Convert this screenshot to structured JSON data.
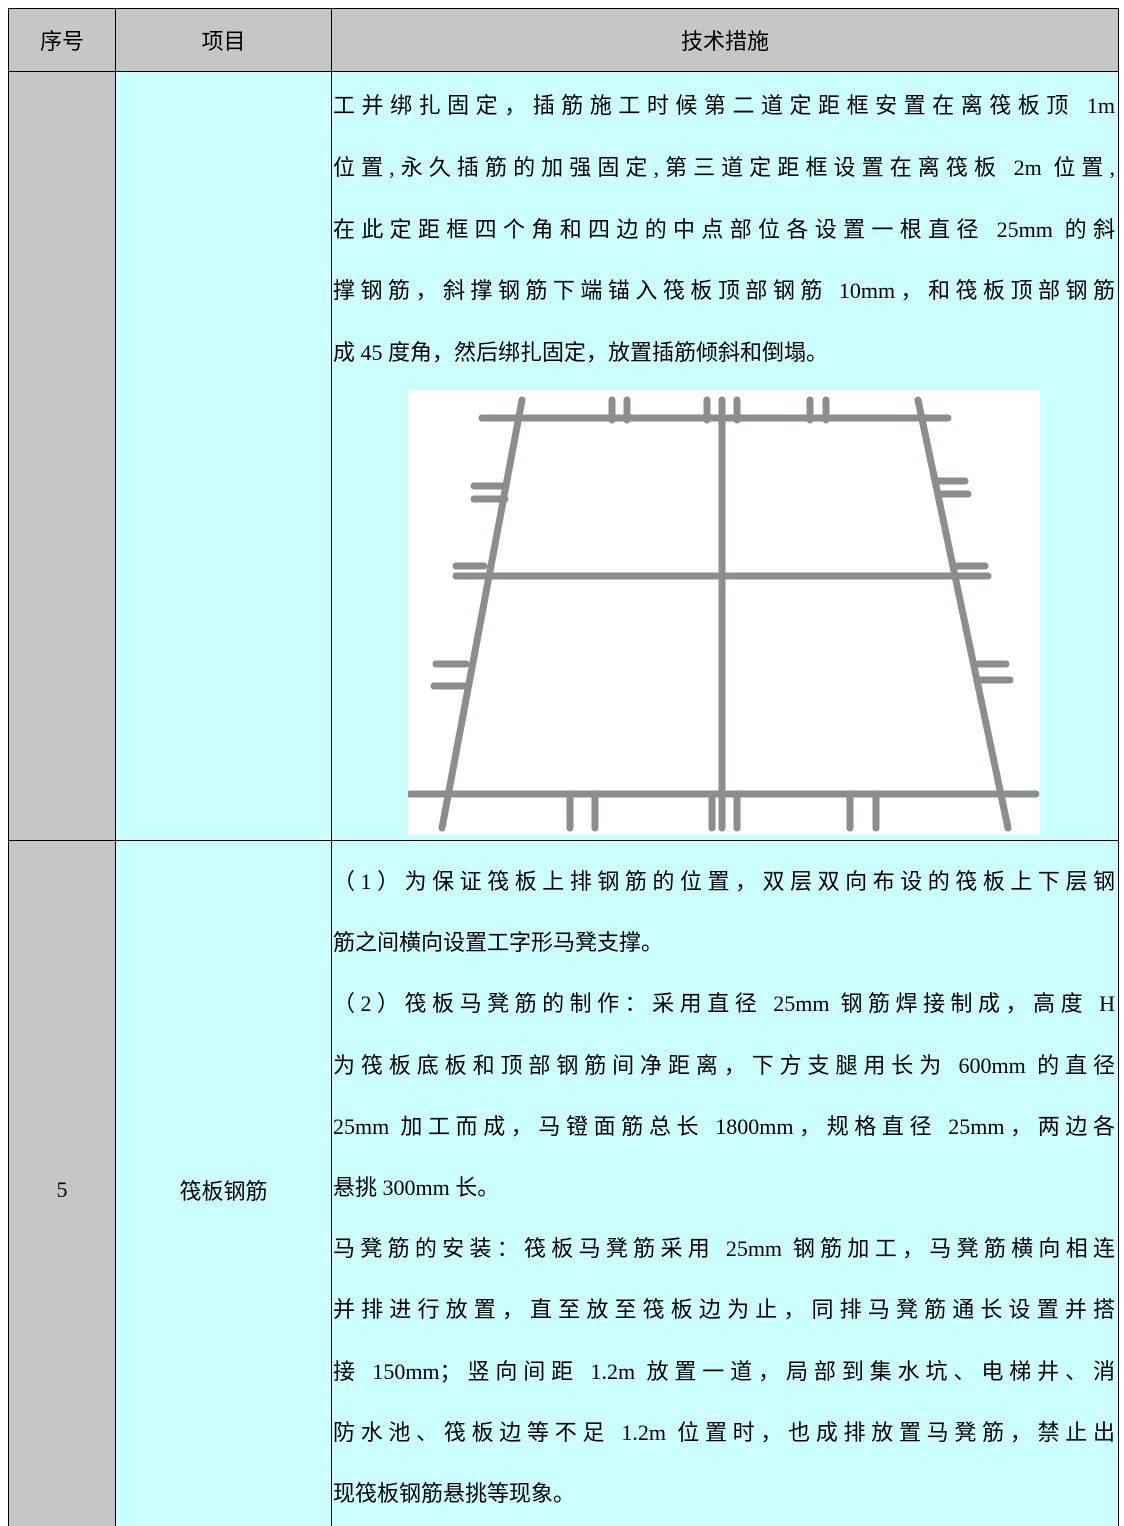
{
  "table": {
    "header": [
      "序号",
      "项目",
      "技术措施"
    ],
    "rows": [
      {
        "paragraphs": [
          [
            "工并绑扎固定，插筋施工时候第二道定距框安置在离筏板顶 1m",
            "位置,永久插筋的加强固定,第三道定距框设置在离筏板 2m 位置,",
            "在此定距框四个角和四边的中点部位各设置一根直径 25mm 的斜",
            "撑钢筋，斜撑钢筋下端锚入筏板顶部钢筋 10mm，和筏板顶部钢筋",
            "成 45 度角，然后绑扎固定，放置插筋倾斜和倒塌。"
          ]
        ]
      },
      {
        "number": "5",
        "item": "筏板钢筋",
        "paragraphs": [
          [
            "（1）为保证筏板上排钢筋的位置，双层双向布设的筏板上下层钢",
            "筋之间横向设置工字形马凳支撑。"
          ],
          [
            "（2）筏板马凳筋的制作：采用直径 25mm 钢筋焊接制成，高度 H",
            "为筏板底板和顶部钢筋间净距离，下方支腿用长为 600mm 的直径",
            "25mm 加工而成，马镫面筋总长 1800mm，规格直径 25mm，两边各",
            "悬挑 300mm 长。"
          ],
          [
            "马凳筋的安装：筏板马凳筋采用 25mm 钢筋加工，马凳筋横向相连",
            "并排进行放置，直至放至筏板边为止，同排马凳筋通长设置并搭",
            "接 150mm；竖向间距 1.2m 放置一道，局部到集水坑、电梯井、消",
            "防水池、筏板边等不足 1.2m 位置时，也成排放置马凳筋，禁止出",
            "现筏板钢筋悬挑等现象。"
          ]
        ]
      }
    ]
  }
}
